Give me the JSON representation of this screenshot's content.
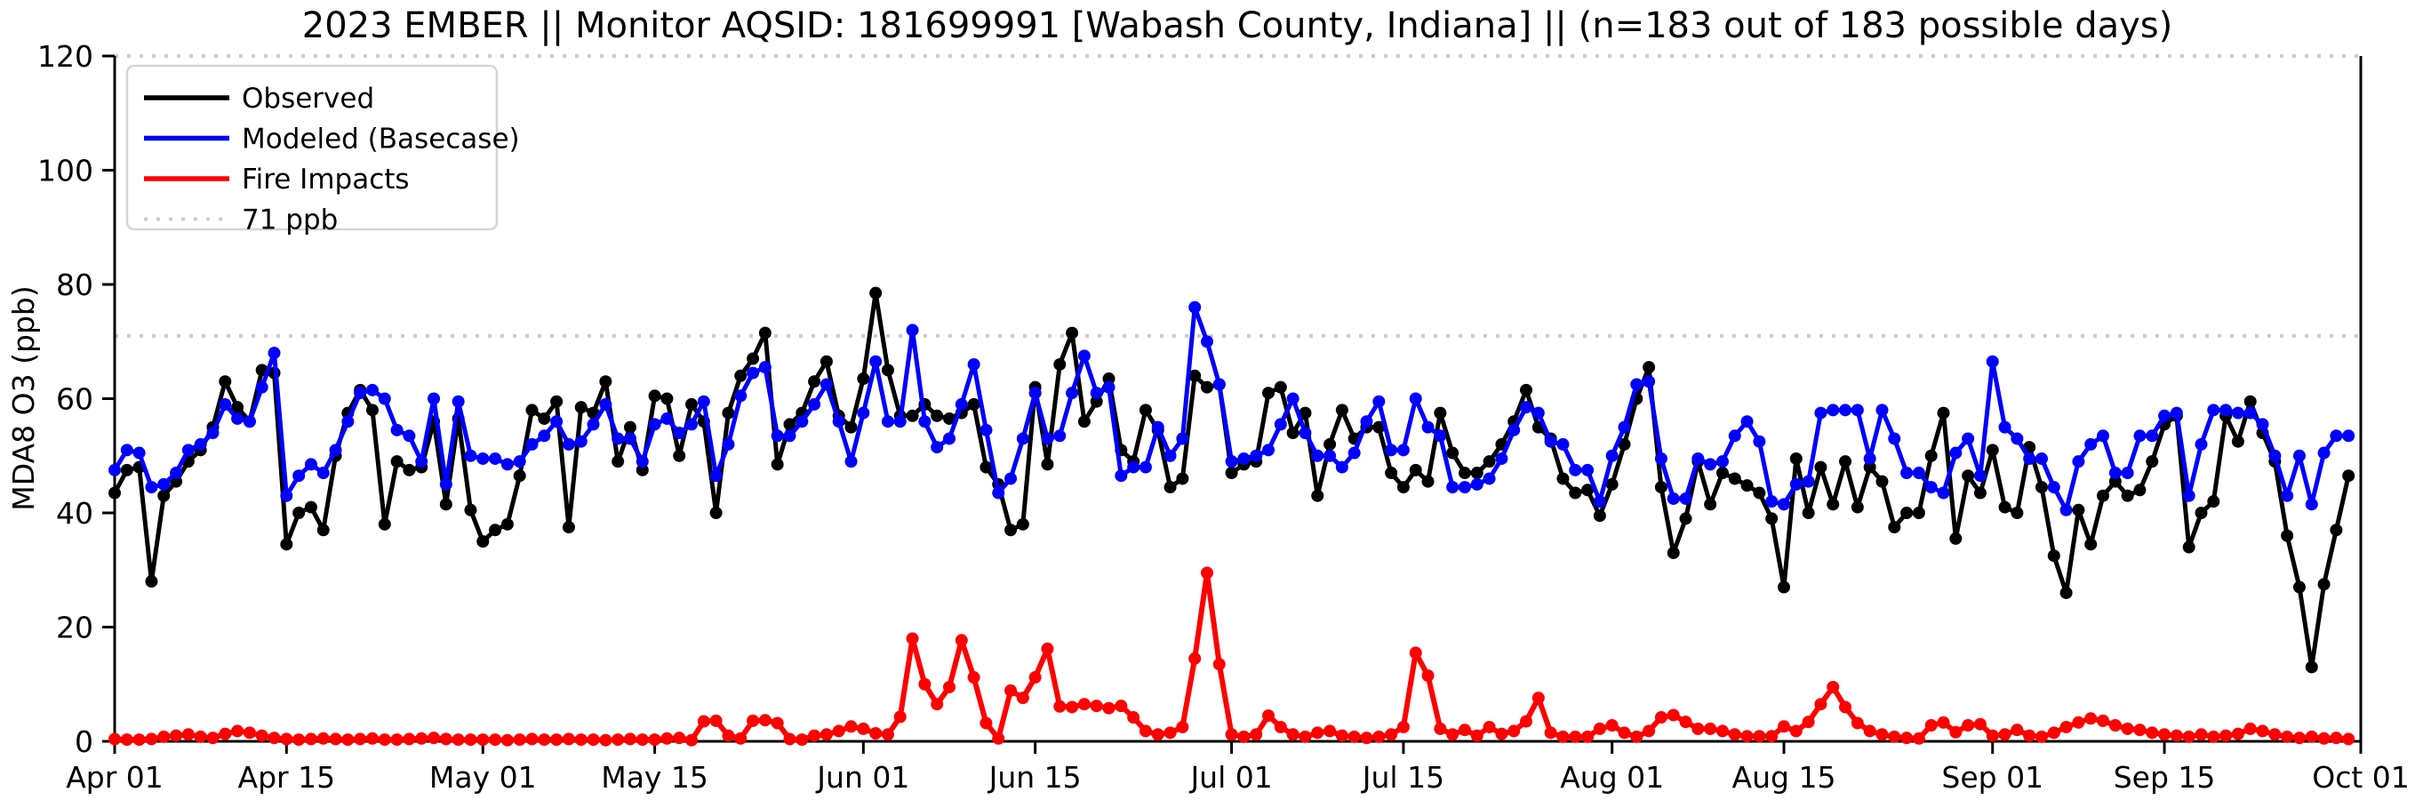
{
  "title": "2023 EMBER || Monitor AQSID: 181699991 [Wabash County, Indiana] || (n=183 out of 183 possible days)",
  "ylabel": "MDA8 O3 (ppb)",
  "legend": [
    {
      "label": "Observed",
      "color": "#000000",
      "dashed": false
    },
    {
      "label": "Modeled (Basecase)",
      "color": "#0000ff",
      "dashed": false
    },
    {
      "label": "Fire Impacts",
      "color": "#ff0000",
      "dashed": false
    },
    {
      "label": "71 ppb",
      "color": "#cccccc",
      "dashed": true
    }
  ],
  "chart_data": {
    "type": "line",
    "title": "2023 EMBER || Monitor AQSID: 181699991 [Wabash County, Indiana] || (n=183 out of 183 possible days)",
    "xlabel": "",
    "ylabel": "MDA8 O3 (ppb)",
    "ylim": [
      0,
      120
    ],
    "y_ticks": [
      0,
      20,
      40,
      60,
      80,
      100,
      120
    ],
    "x_ticks": [
      {
        "label": "Apr 01",
        "day": 0
      },
      {
        "label": "Apr 15",
        "day": 14
      },
      {
        "label": "May 01",
        "day": 30
      },
      {
        "label": "May 15",
        "day": 44
      },
      {
        "label": "Jun 01",
        "day": 61
      },
      {
        "label": "Jun 15",
        "day": 75
      },
      {
        "label": "Jul 01",
        "day": 91
      },
      {
        "label": "Jul 15",
        "day": 105
      },
      {
        "label": "Aug 01",
        "day": 122
      },
      {
        "label": "Aug 15",
        "day": 136
      },
      {
        "label": "Sep 01",
        "day": 153
      },
      {
        "label": "Sep 15",
        "day": 167
      },
      {
        "label": "Oct 01",
        "day": 183
      }
    ],
    "n_days": 183,
    "threshold_ppb": 71,
    "grid_top_ppb": 120,
    "series": [
      {
        "name": "Observed",
        "color": "#000000",
        "linewidth": 5,
        "values": [
          43.5,
          47.5,
          48,
          28,
          43,
          45.5,
          49,
          51,
          55,
          63,
          58.5,
          56,
          65,
          64.5,
          34.5,
          40,
          41,
          37,
          50,
          57.5,
          61.5,
          58,
          38,
          49,
          47.5,
          48,
          56,
          41.5,
          56.5,
          40.5,
          35,
          37,
          38,
          46.5,
          58,
          56.5,
          59.5,
          37.5,
          58.5,
          57.5,
          63,
          49,
          55,
          47.5,
          60.5,
          60,
          50,
          59,
          56,
          40,
          57.5,
          64,
          67,
          71.5,
          48.5,
          55.5,
          57.5,
          63,
          66.5,
          57,
          55,
          63.5,
          78.5,
          65,
          57,
          57,
          59,
          57,
          56.5,
          57.5,
          59,
          48,
          45,
          37,
          38,
          62,
          48.5,
          66,
          71.5,
          56,
          59.5,
          63.5,
          51,
          49,
          58,
          54.5,
          44.5,
          46,
          64,
          62,
          62.5,
          47,
          48.5,
          49,
          61,
          62,
          54,
          57.5,
          43,
          52,
          58,
          53,
          55,
          55,
          47,
          44.5,
          47.5,
          45.5,
          57.5,
          50.5,
          47,
          47,
          49,
          52,
          56,
          61.5,
          55,
          53,
          46,
          43.5,
          44,
          39.5,
          45,
          52,
          60,
          65.5,
          44.5,
          33,
          39,
          49,
          41.5,
          47,
          46,
          44.8,
          43.5,
          39,
          27,
          49.5,
          40,
          48,
          41.5,
          49,
          41,
          48,
          45.5,
          37.5,
          40,
          40,
          50,
          57.5,
          35.5,
          46.5,
          43.5,
          51,
          41,
          40,
          51.5,
          44.5,
          32.5,
          26,
          40.5,
          34.5,
          43,
          45.5,
          43,
          44,
          49,
          55.5,
          57,
          34,
          40,
          42,
          57,
          52.5,
          59.5,
          54,
          49,
          36,
          27,
          13,
          27.5,
          37,
          46.5
        ]
      },
      {
        "name": "Modeled (Basecase)",
        "color": "#0000ff",
        "linewidth": 5,
        "values": [
          47.5,
          51,
          50.5,
          44.5,
          45,
          47,
          51,
          52,
          54,
          59,
          56.5,
          56,
          62,
          68,
          43,
          46.5,
          48.5,
          47,
          51,
          56,
          61,
          61.5,
          60,
          54.5,
          53.5,
          49,
          60,
          45,
          59.5,
          50,
          49.5,
          49.5,
          48.5,
          49,
          52,
          53.5,
          56,
          52,
          52.5,
          55.5,
          59,
          53,
          53,
          49,
          55.5,
          56.5,
          54,
          55.5,
          59.5,
          46.5,
          52,
          60.5,
          64.5,
          65.5,
          53.5,
          53.5,
          56,
          59,
          62.5,
          56,
          49,
          57.5,
          66.5,
          56,
          56,
          72,
          56,
          51.5,
          53,
          59,
          66,
          54.5,
          43.5,
          46,
          53,
          61,
          53,
          53.5,
          61,
          67.5,
          61,
          62,
          46.5,
          48,
          48,
          55,
          50,
          53,
          76,
          70,
          62.5,
          49,
          49.5,
          50,
          51,
          55.5,
          60,
          54,
          50,
          50,
          48,
          50.5,
          56,
          59.5,
          51,
          51,
          60,
          55,
          53.5,
          44.5,
          44.5,
          45,
          46,
          49.5,
          54.5,
          58.5,
          57.5,
          52.5,
          52,
          47.5,
          47.5,
          42,
          50,
          55,
          62.5,
          63,
          49.5,
          42.5,
          42.5,
          49.5,
          48.5,
          49,
          53.5,
          56,
          52.5,
          42,
          41.5,
          45,
          45.5,
          57.5,
          58,
          58,
          58,
          49.5,
          58,
          53,
          47,
          47,
          44.5,
          43.5,
          50.5,
          53,
          46.5,
          66.5,
          55,
          53,
          49.5,
          49.5,
          44.5,
          40.5,
          49,
          52,
          53.5,
          47,
          47,
          53.5,
          53.5,
          57,
          57.5,
          43,
          52,
          58,
          58,
          57.5,
          57.5,
          55.5,
          50,
          43,
          50,
          41.5,
          50.5,
          53.5,
          53.5
        ]
      },
      {
        "name": "Fire Impacts",
        "color": "#ff0000",
        "linewidth": 6,
        "values": [
          0.4,
          0.3,
          0.3,
          0.4,
          0.8,
          1,
          1.2,
          0.8,
          0.6,
          1.3,
          1.8,
          1.5,
          1,
          0.6,
          0.4,
          0.3,
          0.4,
          0.5,
          0.4,
          0.3,
          0.4,
          0.5,
          0.3,
          0.3,
          0.4,
          0.5,
          0.6,
          0.4,
          0.3,
          0.3,
          0.3,
          0.3,
          0.2,
          0.3,
          0.4,
          0.3,
          0.3,
          0.4,
          0.3,
          0.3,
          0.2,
          0.3,
          0.4,
          0.3,
          0.3,
          0.5,
          0.6,
          0.2,
          3.5,
          3.6,
          1,
          0.5,
          3.6,
          3.7,
          3.2,
          0.4,
          0.3,
          1,
          1.2,
          1.8,
          2.6,
          2.2,
          1.4,
          1.2,
          4.3,
          18,
          10,
          6.5,
          9.5,
          17.7,
          11.2,
          3.2,
          0.5,
          8.9,
          7.6,
          11.2,
          16.2,
          6.1,
          6,
          6.5,
          6.2,
          5.8,
          6.2,
          4.2,
          1.8,
          1.2,
          1.5,
          2.5,
          14.5,
          29.5,
          13.5,
          1.2,
          0.8,
          1.2,
          4.5,
          2.5,
          1.2,
          0.8,
          1.5,
          1.8,
          1,
          0.8,
          0.6,
          0.8,
          1.2,
          2.5,
          15.5,
          11.5,
          2.2,
          1.2,
          2,
          1,
          2.5,
          1.3,
          1.8,
          3.5,
          7.6,
          1.5,
          0.8,
          0.8,
          0.8,
          2.2,
          2.8,
          1.5,
          0.8,
          1.8,
          4.2,
          4.6,
          3.4,
          2.2,
          2.2,
          1.8,
          1.2,
          0.9,
          0.9,
          0.9,
          2.6,
          1.8,
          3.4,
          6.5,
          9.5,
          6,
          3.2,
          1.8,
          1.2,
          0.8,
          0.6,
          0.5,
          2.8,
          3.3,
          1.6,
          2.8,
          3,
          1,
          1.2,
          2,
          1,
          0.8,
          1.5,
          2.5,
          3.3,
          4,
          3.6,
          2.8,
          2.2,
          2,
          1.5,
          1.2,
          1,
          0.8,
          1.2,
          0.8,
          1,
          1.3,
          2.2,
          1.8,
          1.2,
          0.8,
          0.6,
          0.8,
          0.5,
          0.6,
          0.4
        ]
      }
    ]
  }
}
